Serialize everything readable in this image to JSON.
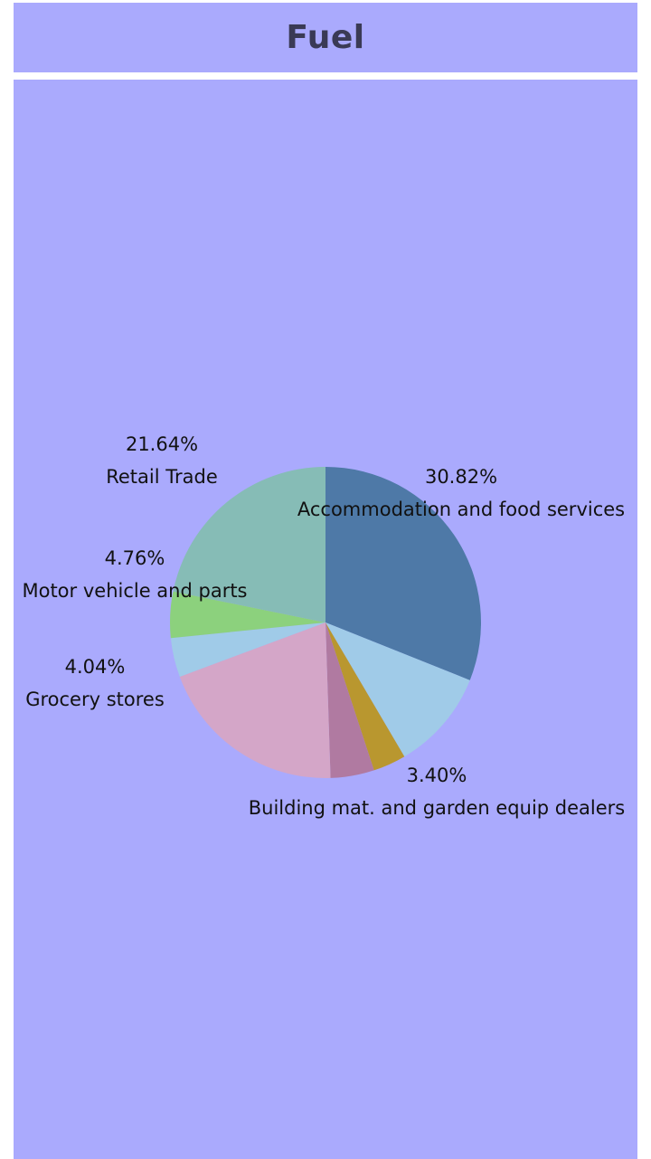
{
  "header": {
    "title": "Fuel"
  },
  "chart_data": {
    "type": "pie",
    "title": "Fuel",
    "start": "12 o'clock, clockwise",
    "slices": [
      {
        "category": "Accommodation and food services",
        "value": 30.82,
        "percent_label": "30.82%",
        "color": "#4e79a7",
        "show_label": true
      },
      {
        "category": "",
        "value": 10.4,
        "percent_label": "",
        "color": "#a0cbe8",
        "show_label": false
      },
      {
        "category": "Building mat. and garden equip dealers",
        "value": 3.4,
        "percent_label": "3.40%",
        "color": "#b9972f",
        "show_label": true
      },
      {
        "category": "",
        "value": 4.5,
        "percent_label": "",
        "color": "#b07aa1",
        "show_label": false
      },
      {
        "category": "",
        "value": 19.7,
        "percent_label": "",
        "color": "#d4a6c8",
        "show_label": false
      },
      {
        "category": "Grocery stores",
        "value": 4.04,
        "percent_label": "4.04%",
        "color": "#a0cbe8",
        "show_label": true
      },
      {
        "category": "Motor vehicle and parts",
        "value": 4.76,
        "percent_label": "4.76%",
        "color": "#8cd17d",
        "show_label": true
      },
      {
        "category": "Retail Trade",
        "value": 21.64,
        "percent_label": "21.64%",
        "color": "#86bcb6",
        "show_label": true
      }
    ]
  },
  "colors": {
    "panel_background": "#aaaafd",
    "title_color": "#3a3a55"
  }
}
